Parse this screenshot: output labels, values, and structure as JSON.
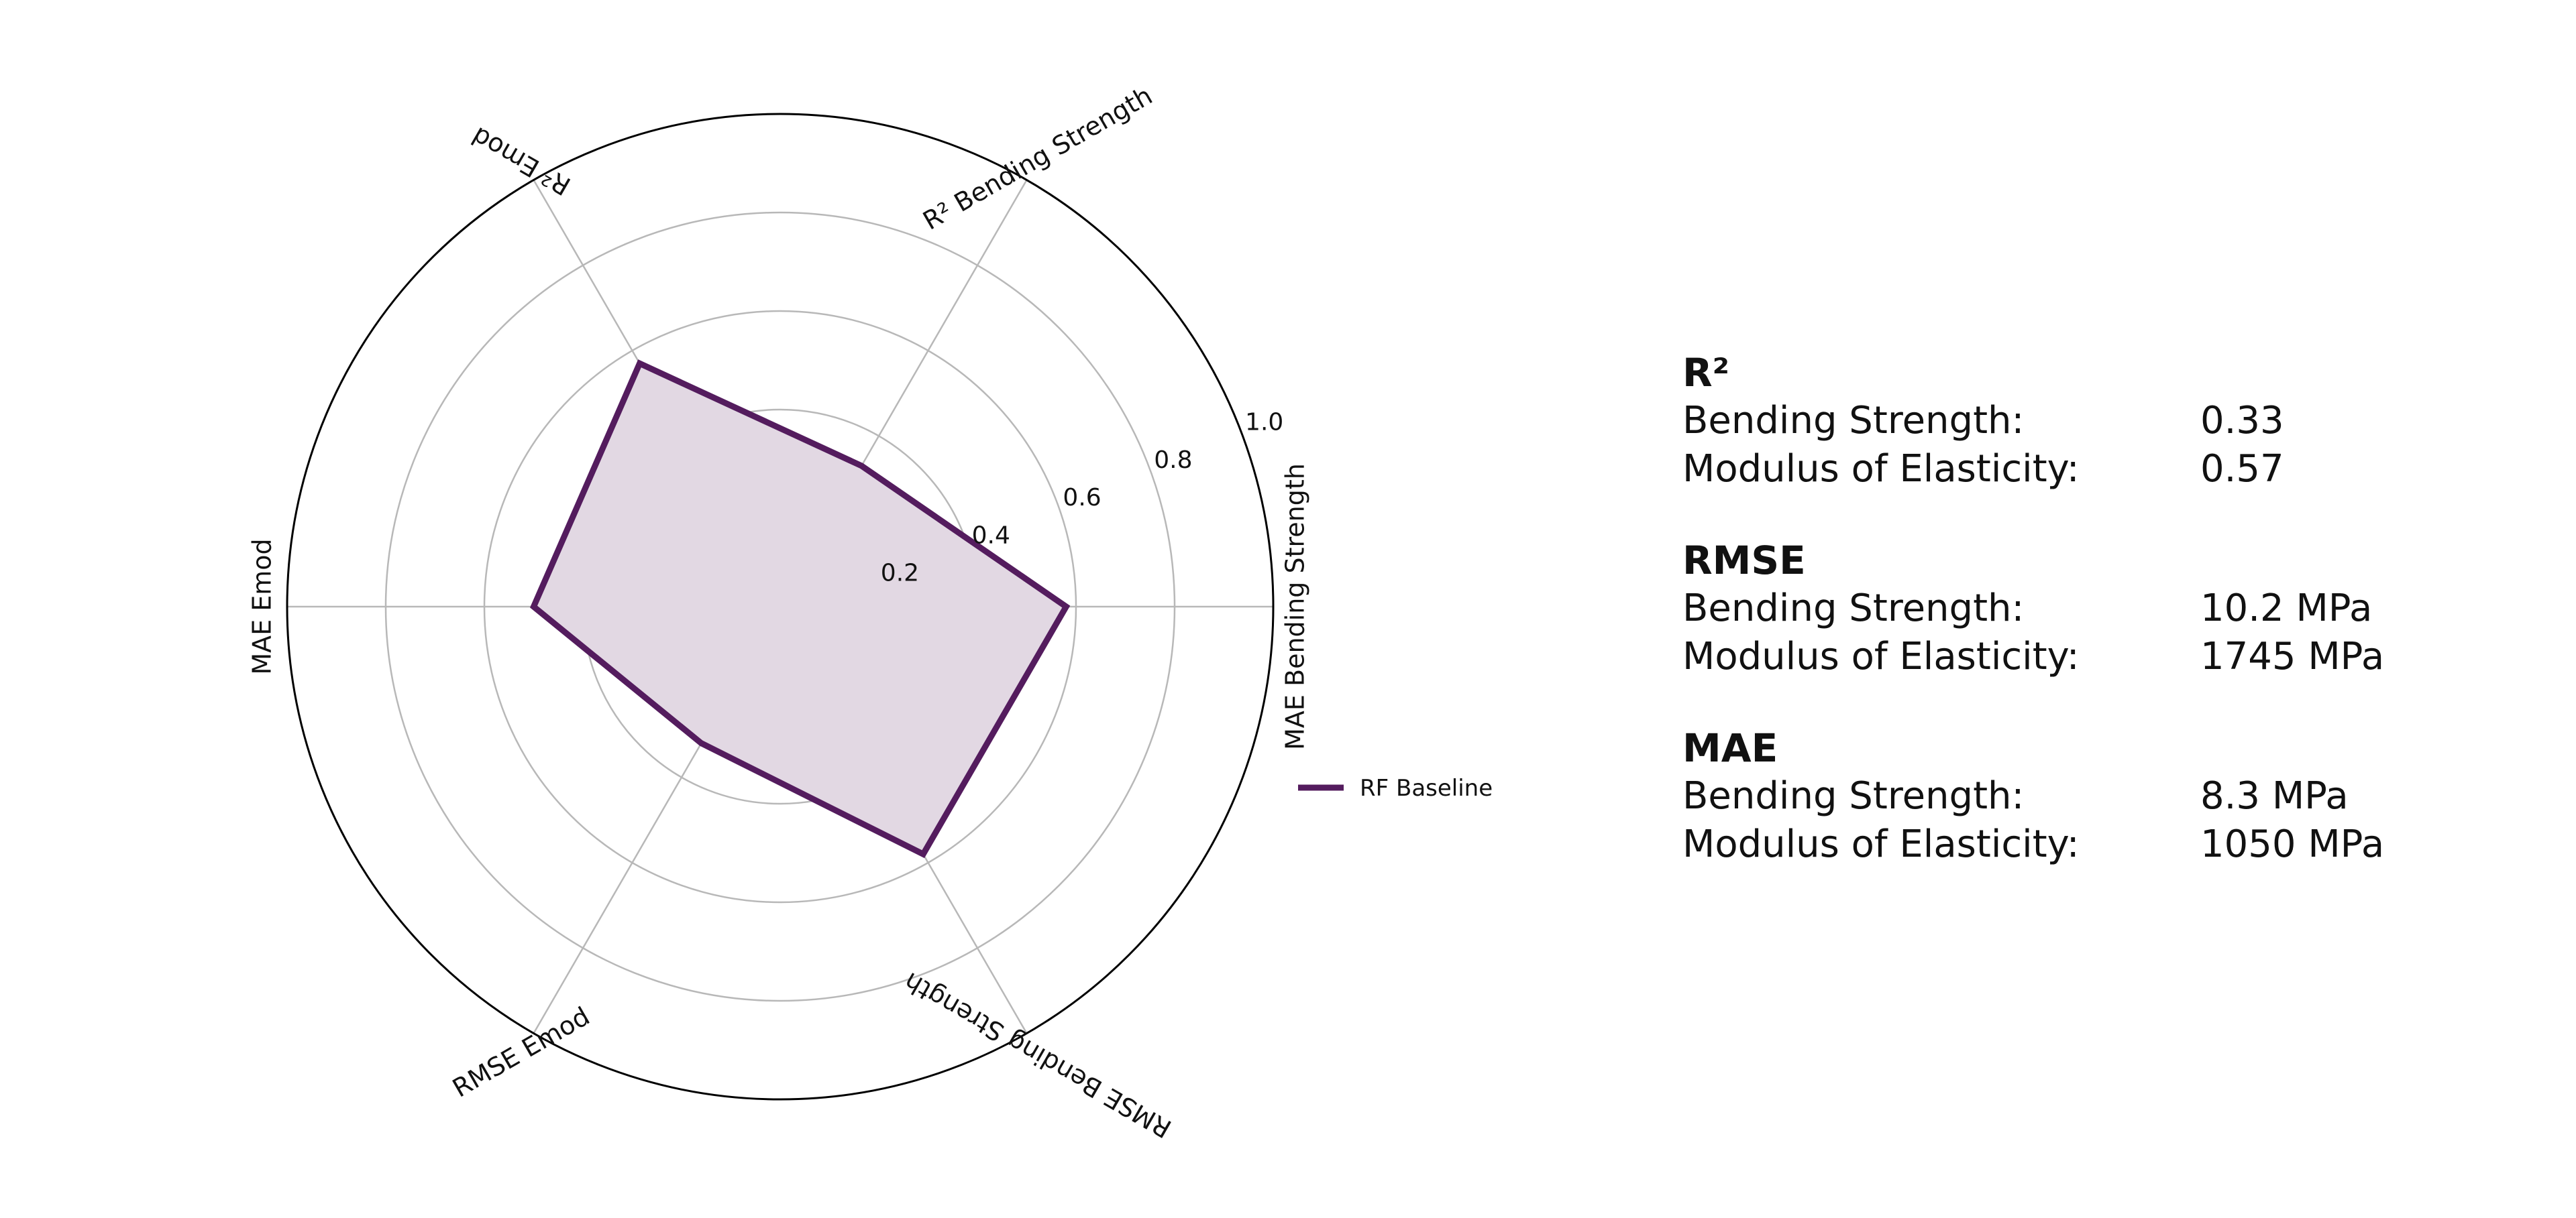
{
  "chart_data": {
    "type": "radar",
    "axes": [
      "MAE Bending Strength",
      "R² Bending Strength",
      "R² Emod",
      "MAE Emod",
      "RMSE Emod",
      "RMSE Bending Strength"
    ],
    "radial_ticks": [
      "0.2",
      "0.4",
      "0.6",
      "0.8",
      "1.0"
    ],
    "rlim": [
      0,
      1
    ],
    "grid": true,
    "legend_position": "right",
    "series": [
      {
        "name": "RF Baseline",
        "values": [
          0.58,
          0.33,
          0.57,
          0.5,
          0.32,
          0.58
        ],
        "color": "#541c5e",
        "fill": "#e2d8e3"
      }
    ]
  },
  "metrics": {
    "r2": {
      "heading": "R²",
      "bending_label": "Bending Strength:",
      "bending_value": "0.33",
      "moe_label": "Modulus of Elasticity:",
      "moe_value": "0.57"
    },
    "rmse": {
      "heading": "RMSE",
      "bending_label": "Bending Strength:",
      "bending_value": "10.2 MPa",
      "moe_label": "Modulus of Elasticity:",
      "moe_value": "1745 MPa"
    },
    "mae": {
      "heading": "MAE",
      "bending_label": "Bending Strength:",
      "bending_value": "8.3 MPa",
      "moe_label": "Modulus of Elasticity:",
      "moe_value": "1050 MPa"
    }
  }
}
